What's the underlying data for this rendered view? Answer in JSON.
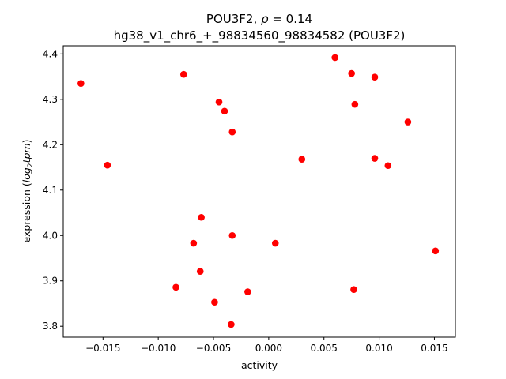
{
  "chart_data": {
    "type": "scatter",
    "title_main": "POU3F2, ",
    "title_rho_symbol": "ρ",
    "title_rho_value": " = 0.14",
    "subtitle": "hg38_v1_chr6_+_98834560_98834582 (POU3F2)",
    "xlabel": "activity",
    "ylabel_prefix": "expression (",
    "ylabel_log": "log",
    "ylabel_sub": "2",
    "ylabel_tpm": "tpm",
    "ylabel_suffix": ")",
    "xlim": [
      -0.0186,
      0.0169
    ],
    "ylim": [
      3.776,
      4.418
    ],
    "x_ticks": [
      -0.015,
      -0.01,
      -0.005,
      0.0,
      0.005,
      0.01,
      0.015
    ],
    "x_tick_labels": [
      "−0.015",
      "−0.010",
      "−0.005",
      "0.000",
      "0.005",
      "0.010",
      "0.015"
    ],
    "y_ticks": [
      3.8,
      3.9,
      4.0,
      4.1,
      4.2,
      4.3,
      4.4
    ],
    "y_tick_labels": [
      "3.8",
      "3.9",
      "4.0",
      "4.1",
      "4.2",
      "4.3",
      "4.4"
    ],
    "marker_color": "#ff0000",
    "points": [
      {
        "x": -0.017,
        "y": 4.335
      },
      {
        "x": -0.0146,
        "y": 4.155
      },
      {
        "x": -0.0077,
        "y": 4.355
      },
      {
        "x": -0.0045,
        "y": 4.294
      },
      {
        "x": -0.004,
        "y": 4.274
      },
      {
        "x": -0.0033,
        "y": 4.228
      },
      {
        "x": -0.0061,
        "y": 4.04
      },
      {
        "x": -0.0068,
        "y": 3.983
      },
      {
        "x": -0.0033,
        "y": 4.0
      },
      {
        "x": 0.0006,
        "y": 3.983
      },
      {
        "x": -0.0062,
        "y": 3.921
      },
      {
        "x": -0.0084,
        "y": 3.886
      },
      {
        "x": -0.0049,
        "y": 3.853
      },
      {
        "x": -0.0019,
        "y": 3.876
      },
      {
        "x": -0.0034,
        "y": 3.804
      },
      {
        "x": 0.003,
        "y": 4.168
      },
      {
        "x": 0.006,
        "y": 4.392
      },
      {
        "x": 0.0075,
        "y": 4.357
      },
      {
        "x": 0.0078,
        "y": 4.289
      },
      {
        "x": 0.0096,
        "y": 4.349
      },
      {
        "x": 0.0096,
        "y": 4.17
      },
      {
        "x": 0.0108,
        "y": 4.154
      },
      {
        "x": 0.0126,
        "y": 4.25
      },
      {
        "x": 0.0151,
        "y": 3.966
      },
      {
        "x": 0.0077,
        "y": 3.881
      }
    ]
  }
}
